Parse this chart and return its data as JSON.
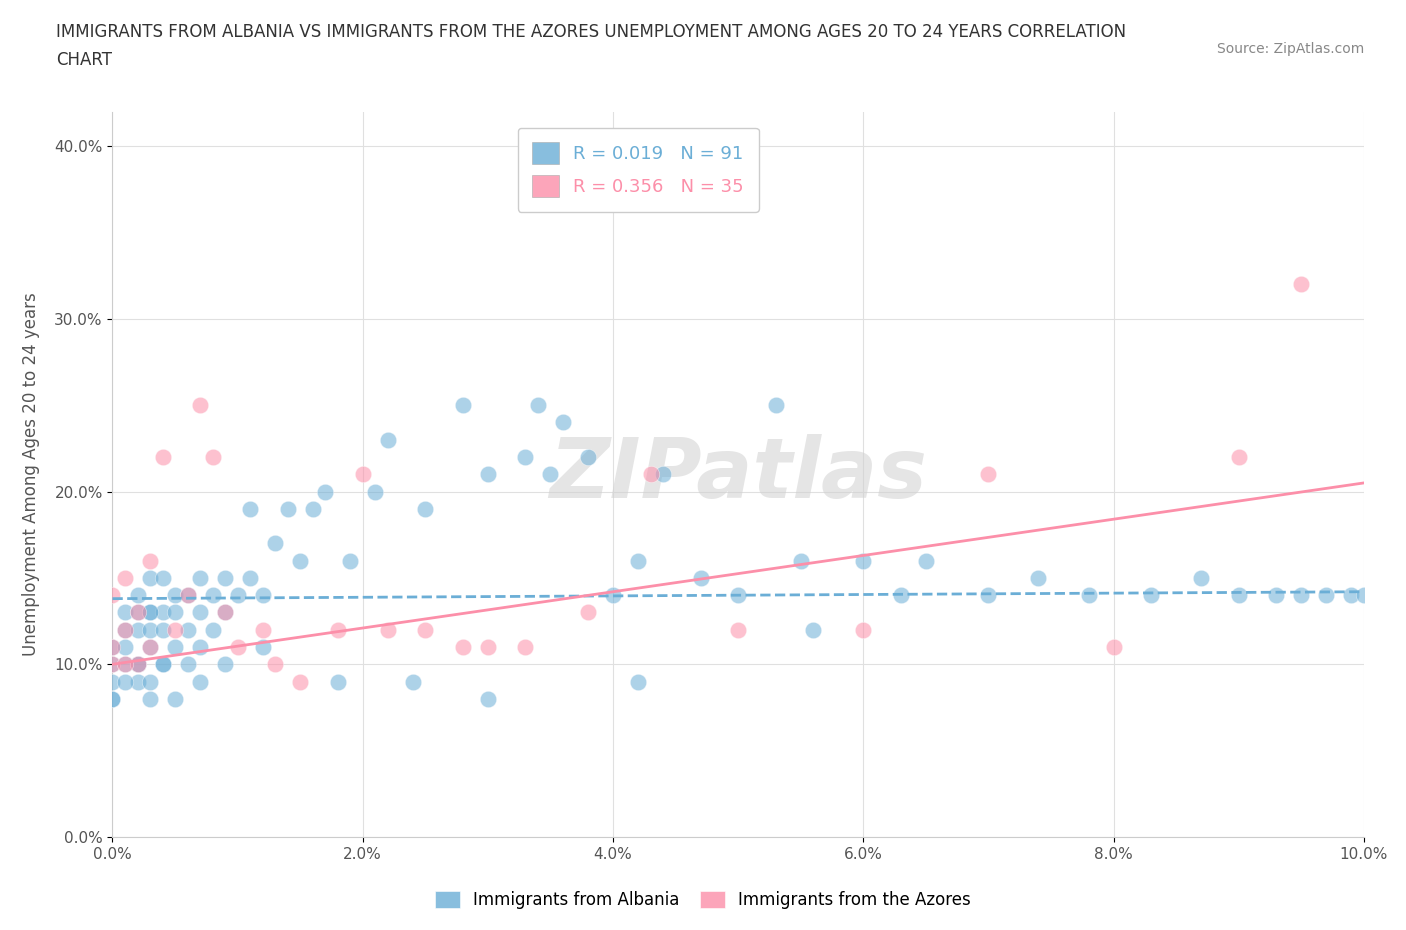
{
  "title_line1": "IMMIGRANTS FROM ALBANIA VS IMMIGRANTS FROM THE AZORES UNEMPLOYMENT AMONG AGES 20 TO 24 YEARS CORRELATION",
  "title_line2": "CHART",
  "source_text": "Source: ZipAtlas.com",
  "ylabel": "Unemployment Among Ages 20 to 24 years",
  "xlim": [
    0.0,
    0.1
  ],
  "ylim": [
    0.0,
    0.42
  ],
  "x_ticks": [
    0.0,
    0.02,
    0.04,
    0.06,
    0.08,
    0.1
  ],
  "x_tick_labels": [
    "0.0%",
    "2.0%",
    "4.0%",
    "6.0%",
    "8.0%",
    "10.0%"
  ],
  "y_ticks": [
    0.0,
    0.1,
    0.2,
    0.3,
    0.4
  ],
  "y_tick_labels": [
    "0.0%",
    "10.0%",
    "20.0%",
    "30.0%",
    "40.0%"
  ],
  "legend_r1": "R = 0.019",
  "legend_n1": "N = 91",
  "legend_r2": "R = 0.356",
  "legend_n2": "N = 35",
  "color_albania": "#6baed6",
  "color_azores": "#fc8fa9",
  "watermark": "ZIPatlas",
  "watermark_color": "#d0d0d0",
  "albania_scatter_x": [
    0.0,
    0.0,
    0.0,
    0.0,
    0.001,
    0.001,
    0.001,
    0.001,
    0.002,
    0.002,
    0.002,
    0.002,
    0.002,
    0.003,
    0.003,
    0.003,
    0.003,
    0.003,
    0.003,
    0.004,
    0.004,
    0.004,
    0.004,
    0.005,
    0.005,
    0.005,
    0.006,
    0.006,
    0.006,
    0.007,
    0.007,
    0.007,
    0.008,
    0.008,
    0.009,
    0.009,
    0.01,
    0.011,
    0.011,
    0.012,
    0.013,
    0.014,
    0.015,
    0.016,
    0.017,
    0.019,
    0.021,
    0.022,
    0.025,
    0.028,
    0.03,
    0.033,
    0.034,
    0.035,
    0.036,
    0.038,
    0.04,
    0.042,
    0.044,
    0.047,
    0.05,
    0.053,
    0.055,
    0.06,
    0.063,
    0.065,
    0.07,
    0.074,
    0.078,
    0.083,
    0.087,
    0.09,
    0.093,
    0.095,
    0.097,
    0.099,
    0.1,
    0.0,
    0.001,
    0.002,
    0.003,
    0.004,
    0.005,
    0.007,
    0.009,
    0.012,
    0.018,
    0.024,
    0.03,
    0.042,
    0.056
  ],
  "albania_scatter_y": [
    0.08,
    0.09,
    0.1,
    0.11,
    0.1,
    0.11,
    0.12,
    0.13,
    0.09,
    0.1,
    0.12,
    0.13,
    0.14,
    0.08,
    0.09,
    0.11,
    0.12,
    0.13,
    0.15,
    0.1,
    0.12,
    0.13,
    0.15,
    0.11,
    0.13,
    0.14,
    0.1,
    0.12,
    0.14,
    0.11,
    0.13,
    0.15,
    0.12,
    0.14,
    0.13,
    0.15,
    0.14,
    0.15,
    0.19,
    0.14,
    0.17,
    0.19,
    0.16,
    0.19,
    0.2,
    0.16,
    0.2,
    0.23,
    0.19,
    0.25,
    0.21,
    0.22,
    0.25,
    0.21,
    0.24,
    0.22,
    0.14,
    0.16,
    0.21,
    0.15,
    0.14,
    0.25,
    0.16,
    0.16,
    0.14,
    0.16,
    0.14,
    0.15,
    0.14,
    0.14,
    0.15,
    0.14,
    0.14,
    0.14,
    0.14,
    0.14,
    0.14,
    0.08,
    0.09,
    0.1,
    0.13,
    0.1,
    0.08,
    0.09,
    0.1,
    0.11,
    0.09,
    0.09,
    0.08,
    0.09,
    0.12
  ],
  "azores_scatter_x": [
    0.0,
    0.0,
    0.001,
    0.001,
    0.002,
    0.002,
    0.003,
    0.003,
    0.004,
    0.005,
    0.006,
    0.007,
    0.008,
    0.009,
    0.01,
    0.012,
    0.013,
    0.015,
    0.018,
    0.02,
    0.022,
    0.025,
    0.028,
    0.03,
    0.033,
    0.038,
    0.043,
    0.05,
    0.06,
    0.07,
    0.08,
    0.09,
    0.095,
    0.0,
    0.001
  ],
  "azores_scatter_y": [
    0.11,
    0.14,
    0.12,
    0.15,
    0.1,
    0.13,
    0.11,
    0.16,
    0.22,
    0.12,
    0.14,
    0.25,
    0.22,
    0.13,
    0.11,
    0.12,
    0.1,
    0.09,
    0.12,
    0.21,
    0.12,
    0.12,
    0.11,
    0.11,
    0.11,
    0.13,
    0.21,
    0.12,
    0.12,
    0.21,
    0.11,
    0.22,
    0.32,
    0.1,
    0.1
  ],
  "albania_trendline_x": [
    0.0,
    0.1
  ],
  "albania_trendline_y": [
    0.138,
    0.142
  ],
  "azores_trendline_x": [
    0.0,
    0.1
  ],
  "azores_trendline_y": [
    0.1,
    0.205
  ],
  "background_color": "#ffffff",
  "grid_color": "#e0e0e0"
}
